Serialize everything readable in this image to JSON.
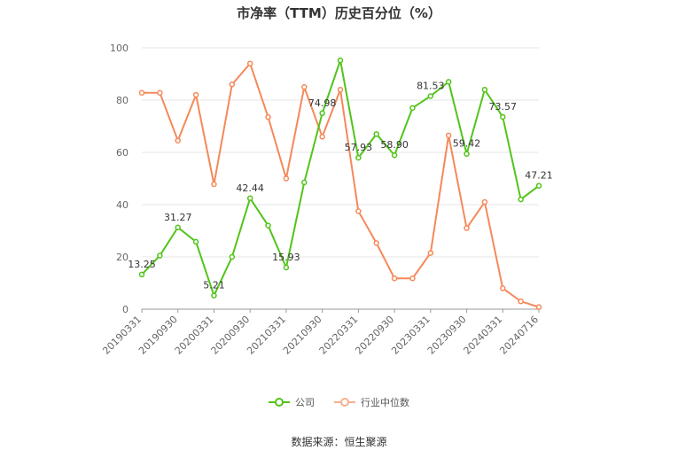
{
  "title": "市净率（TTM）历史百分位（%）",
  "source_text": "数据来源：恒生聚源",
  "colors": {
    "company": "#52c41a",
    "industry": "#f5895a",
    "grid": "#e6e6e6",
    "axis_text": "#666666"
  },
  "chart_data": {
    "type": "line",
    "title": "市净率（TTM）历史百分位（%）",
    "ylim": [
      0,
      100
    ],
    "y_ticks": [
      0,
      20,
      40,
      60,
      80,
      100
    ],
    "x_tick_labels": [
      "20190331",
      "20190930",
      "20200331",
      "20200930",
      "20210331",
      "20210930",
      "20220331",
      "20220930",
      "20230331",
      "20230930",
      "20240331",
      "20240716"
    ],
    "legend_position": "bottom",
    "grid": true,
    "series": [
      {
        "name": "公司",
        "values": [
          13.25,
          20.5,
          31.27,
          25.8,
          5.21,
          20.0,
          42.44,
          32.0,
          15.93,
          48.5,
          74.98,
          95.2,
          57.93,
          67.0,
          58.9,
          77.0,
          81.53,
          87.0,
          59.42,
          84.0,
          73.57,
          42.0,
          47.21
        ],
        "labels": [
          "13.25",
          "",
          "31.27",
          "",
          "5.21",
          "",
          "42.44",
          "",
          "15.93",
          "",
          "74.98",
          "",
          "57.93",
          "",
          "58.90",
          "",
          "81.53",
          "",
          "59.42",
          "",
          "73.57",
          "",
          "47.21"
        ]
      },
      {
        "name": "行业中位数",
        "values": [
          82.8,
          82.8,
          64.5,
          82.0,
          47.8,
          86.0,
          94.0,
          73.5,
          50.0,
          85.0,
          66.0,
          84.0,
          37.5,
          25.3,
          11.8,
          11.8,
          21.5,
          66.5,
          31.0,
          41.0,
          8.0,
          3.0,
          0.8
        ]
      }
    ]
  }
}
